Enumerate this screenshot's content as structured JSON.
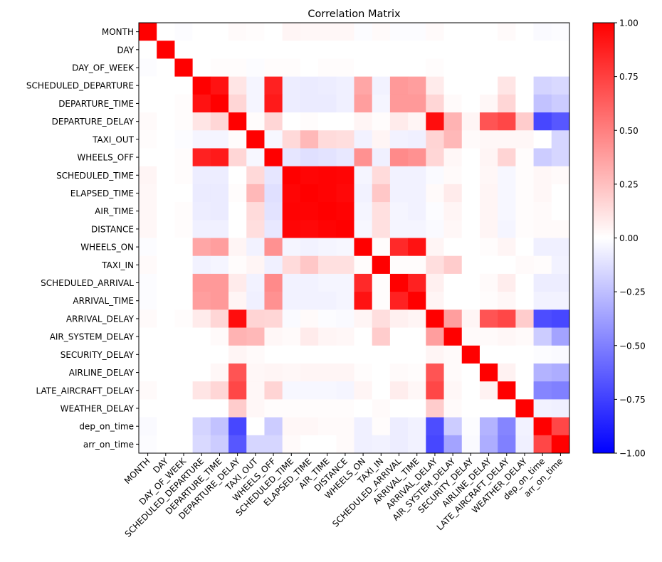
{
  "chart_data": {
    "type": "heatmap",
    "title": "Correlation Matrix",
    "labels": [
      "MONTH",
      "DAY",
      "DAY_OF_WEEK",
      "SCHEDULED_DEPARTURE",
      "DEPARTURE_TIME",
      "DEPARTURE_DELAY",
      "TAXI_OUT",
      "WHEELS_OFF",
      "SCHEDULED_TIME",
      "ELAPSED_TIME",
      "AIR_TIME",
      "DISTANCE",
      "WHEELS_ON",
      "TAXI_IN",
      "SCHEDULED_ARRIVAL",
      "ARRIVAL_TIME",
      "ARRIVAL_DELAY",
      "AIR_SYSTEM_DELAY",
      "SECURITY_DELAY",
      "AIRLINE_DELAY",
      "LATE_AIRCRAFT_DELAY",
      "WEATHER_DELAY",
      "dep_on_time",
      "arr_on_time"
    ],
    "matrix": [
      [
        1.0,
        0.0,
        -0.01,
        0.0,
        0.0,
        0.02,
        0.01,
        0.0,
        0.04,
        0.03,
        0.03,
        0.03,
        -0.01,
        0.02,
        -0.01,
        -0.01,
        0.02,
        0.0,
        0.0,
        0.0,
        0.02,
        0.0,
        -0.02,
        -0.01
      ],
      [
        0.0,
        1.0,
        0.0,
        0.0,
        0.0,
        0.0,
        0.0,
        0.0,
        0.0,
        0.0,
        0.0,
        0.0,
        0.0,
        0.0,
        0.0,
        0.0,
        0.0,
        0.0,
        0.0,
        0.0,
        0.0,
        0.0,
        0.0,
        0.0
      ],
      [
        -0.01,
        0.0,
        1.0,
        0.0,
        0.01,
        0.01,
        -0.01,
        0.01,
        0.01,
        0.0,
        0.01,
        0.01,
        0.0,
        0.0,
        0.0,
        0.0,
        0.01,
        0.0,
        0.0,
        0.0,
        0.0,
        0.0,
        0.0,
        0.0
      ],
      [
        0.0,
        0.0,
        0.0,
        1.0,
        0.93,
        0.1,
        -0.04,
        0.87,
        -0.07,
        -0.08,
        -0.07,
        -0.06,
        0.35,
        -0.05,
        0.4,
        0.38,
        0.08,
        0.0,
        0.0,
        0.0,
        0.1,
        0.0,
        -0.17,
        -0.15
      ],
      [
        0.0,
        0.0,
        0.01,
        0.93,
        1.0,
        0.16,
        -0.04,
        0.9,
        -0.07,
        -0.08,
        -0.08,
        -0.06,
        0.38,
        -0.04,
        0.4,
        0.4,
        0.16,
        0.02,
        0.0,
        0.03,
        0.16,
        0.0,
        -0.24,
        -0.2
      ],
      [
        0.02,
        0.0,
        0.01,
        0.1,
        0.16,
        1.0,
        0.01,
        0.16,
        0.0,
        0.01,
        0.0,
        0.0,
        0.04,
        0.01,
        0.08,
        0.04,
        0.95,
        0.3,
        0.04,
        0.67,
        0.72,
        0.2,
        -0.72,
        -0.66
      ],
      [
        0.01,
        0.0,
        -0.01,
        -0.04,
        -0.04,
        0.01,
        1.0,
        -0.03,
        0.15,
        0.28,
        0.14,
        0.13,
        -0.05,
        0.04,
        -0.05,
        -0.06,
        0.17,
        0.28,
        0.02,
        0.03,
        0.03,
        0.03,
        0.0,
        -0.16
      ],
      [
        0.0,
        0.0,
        0.01,
        0.87,
        0.9,
        0.16,
        -0.03,
        1.0,
        -0.1,
        -0.12,
        -0.11,
        -0.09,
        0.43,
        -0.06,
        0.46,
        0.43,
        0.16,
        0.03,
        0.0,
        0.04,
        0.17,
        0.01,
        -0.2,
        -0.16
      ],
      [
        0.04,
        0.0,
        0.01,
        -0.07,
        -0.07,
        0.0,
        0.15,
        -0.1,
        1.0,
        0.98,
        0.99,
        0.98,
        -0.04,
        0.14,
        -0.05,
        -0.05,
        -0.02,
        0.02,
        0.0,
        0.03,
        -0.03,
        0.01,
        0.03,
        0.02
      ],
      [
        0.03,
        0.0,
        0.0,
        -0.08,
        -0.08,
        0.01,
        0.28,
        -0.12,
        0.98,
        1.0,
        0.99,
        0.97,
        -0.05,
        0.22,
        -0.05,
        -0.05,
        0.02,
        0.08,
        0.0,
        0.04,
        -0.03,
        0.01,
        0.03,
        0.0
      ],
      [
        0.03,
        0.0,
        0.01,
        -0.07,
        -0.08,
        0.0,
        0.14,
        -0.11,
        0.99,
        0.99,
        1.0,
        0.99,
        -0.04,
        0.12,
        -0.04,
        -0.05,
        -0.01,
        0.04,
        0.0,
        0.04,
        -0.03,
        0.01,
        0.02,
        0.0
      ],
      [
        0.03,
        0.0,
        0.01,
        -0.06,
        -0.06,
        0.0,
        0.13,
        -0.09,
        0.98,
        0.97,
        0.99,
        1.0,
        -0.03,
        0.12,
        -0.04,
        -0.04,
        -0.02,
        0.03,
        0.0,
        0.04,
        -0.04,
        0.01,
        0.02,
        0.02
      ],
      [
        -0.01,
        0.0,
        0.0,
        0.35,
        0.38,
        0.04,
        -0.05,
        0.43,
        -0.04,
        -0.05,
        -0.04,
        -0.03,
        1.0,
        0.01,
        0.84,
        0.93,
        0.04,
        0.0,
        0.0,
        0.01,
        0.04,
        0.0,
        -0.06,
        -0.06
      ],
      [
        0.02,
        0.0,
        0.0,
        -0.05,
        -0.04,
        0.01,
        0.04,
        -0.06,
        0.14,
        0.22,
        0.12,
        0.12,
        0.01,
        1.0,
        0.01,
        0.01,
        0.13,
        0.2,
        0.0,
        0.0,
        0.0,
        0.02,
        0.01,
        -0.05
      ],
      [
        -0.01,
        0.0,
        0.0,
        0.4,
        0.4,
        0.08,
        -0.05,
        0.46,
        -0.05,
        -0.05,
        -0.04,
        -0.04,
        0.84,
        0.01,
        1.0,
        0.87,
        0.06,
        0.0,
        0.0,
        0.02,
        0.07,
        0.0,
        -0.07,
        -0.07
      ],
      [
        -0.01,
        0.0,
        0.0,
        0.38,
        0.4,
        0.04,
        -0.06,
        0.43,
        -0.05,
        -0.05,
        -0.05,
        -0.04,
        0.93,
        0.01,
        0.87,
        1.0,
        0.04,
        0.0,
        0.0,
        0.01,
        0.03,
        0.0,
        -0.05,
        -0.05
      ],
      [
        0.02,
        0.0,
        0.01,
        0.08,
        0.16,
        0.95,
        0.17,
        0.16,
        -0.02,
        0.02,
        -0.01,
        -0.02,
        0.04,
        0.13,
        0.06,
        0.04,
        1.0,
        0.38,
        0.04,
        0.67,
        0.72,
        0.2,
        -0.7,
        -0.72
      ],
      [
        0.0,
        0.0,
        0.0,
        0.0,
        0.02,
        0.3,
        0.28,
        0.03,
        0.02,
        0.08,
        0.04,
        0.03,
        0.0,
        0.2,
        0.0,
        0.0,
        0.38,
        1.0,
        0.02,
        0.02,
        0.03,
        0.02,
        -0.2,
        -0.36
      ],
      [
        0.0,
        0.0,
        0.0,
        0.0,
        0.0,
        0.04,
        0.02,
        0.0,
        0.0,
        0.0,
        0.0,
        0.0,
        0.0,
        0.0,
        0.0,
        0.0,
        0.04,
        0.02,
        1.0,
        0.0,
        0.0,
        0.0,
        -0.01,
        -0.02
      ],
      [
        0.0,
        0.0,
        0.0,
        0.0,
        0.03,
        0.67,
        0.03,
        0.04,
        0.03,
        0.04,
        0.04,
        0.04,
        0.01,
        0.0,
        0.02,
        0.01,
        0.67,
        0.02,
        0.0,
        1.0,
        0.05,
        0.0,
        -0.3,
        -0.32
      ],
      [
        0.02,
        0.0,
        0.0,
        0.1,
        0.16,
        0.72,
        0.03,
        0.17,
        -0.03,
        -0.03,
        -0.03,
        -0.04,
        0.04,
        0.0,
        0.07,
        0.03,
        0.72,
        0.03,
        0.0,
        0.05,
        1.0,
        0.0,
        -0.48,
        -0.5
      ],
      [
        0.0,
        0.0,
        0.0,
        0.0,
        0.0,
        0.2,
        0.03,
        0.01,
        0.01,
        0.01,
        0.01,
        0.01,
        0.0,
        0.02,
        0.0,
        0.0,
        0.2,
        0.02,
        0.0,
        0.0,
        0.0,
        1.0,
        -0.05,
        -0.06
      ],
      [
        -0.02,
        0.0,
        0.0,
        -0.17,
        -0.24,
        -0.72,
        0.0,
        -0.2,
        0.03,
        0.03,
        0.02,
        0.02,
        -0.06,
        0.01,
        -0.07,
        -0.05,
        -0.7,
        -0.2,
        -0.01,
        -0.3,
        -0.48,
        -0.05,
        1.0,
        0.72
      ],
      [
        -0.01,
        0.0,
        0.0,
        -0.15,
        -0.2,
        -0.66,
        -0.16,
        -0.16,
        0.02,
        0.0,
        0.0,
        0.02,
        -0.06,
        -0.05,
        -0.07,
        -0.05,
        -0.72,
        -0.36,
        -0.02,
        -0.32,
        -0.5,
        -0.06,
        0.72,
        1.0
      ]
    ],
    "vmin": -1.0,
    "vmax": 1.0,
    "colormap": "bwr",
    "colorbar_ticks": [
      -1.0,
      -0.75,
      -0.5,
      -0.25,
      0.0,
      0.25,
      0.5,
      0.75,
      1.0
    ],
    "colorbar_tick_labels": [
      "−1.00",
      "−0.75",
      "−0.50",
      "−0.25",
      "0.00",
      "0.25",
      "0.50",
      "0.75",
      "1.00"
    ],
    "xlabel": "",
    "ylabel": "",
    "grid": false
  },
  "colors": {
    "low": "#0000ff",
    "mid": "#ffffff",
    "high": "#ff0000",
    "axis": "#000000"
  }
}
